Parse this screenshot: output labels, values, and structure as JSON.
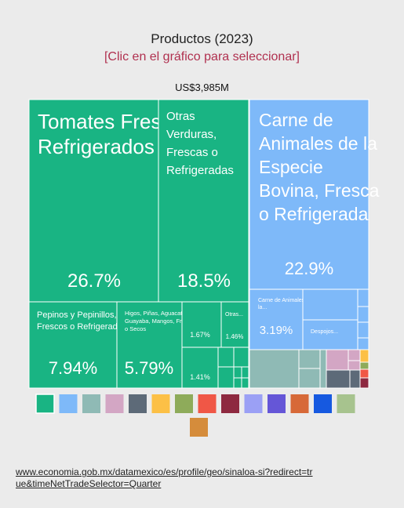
{
  "header": {
    "title": "Productos (2023)",
    "subtitle": "[Clic en el gráfico para seleccionar]",
    "total": "US$3,985M"
  },
  "source": {
    "link": "www.economia.gob.mx/datamexico/es/profile/geo/sinaloa-si?redirect=true&timeNetTradeSelector=Quarter"
  },
  "colors": {
    "green": "#19b483",
    "blue": "#7eb9f9",
    "sage": "#8fbab5",
    "pink": "#d3a6c4",
    "slate": "#5d6a78",
    "yellow": "#fcc046",
    "olive": "#8eab5a",
    "red": "#f05746",
    "maroon": "#8e2940",
    "lavender": "#9ba0f5",
    "indigo": "#6556d7",
    "orange": "#d76938",
    "royal": "#1659e0",
    "lightgreen": "#a7c38e",
    "ochre": "#d58c3b"
  },
  "chart_data": {
    "type": "treemap",
    "total_label": "US$3,985M",
    "items": [
      {
        "label": "Tomates Frescos o Refrigerados",
        "share": 26.7,
        "share_label": "26.7%",
        "group": "green"
      },
      {
        "label": "Otras Verduras, Frescas o Refrigeradas",
        "share": 18.5,
        "share_label": "18.5%",
        "group": "green"
      },
      {
        "label": "Carne de Animales de la Especie Bovina, Fresca o Refrigerada",
        "share": 22.9,
        "share_label": "22.9%",
        "group": "blue"
      },
      {
        "label": "Pepinos y Pepinillos, Frescos o Refrigerados",
        "share": 7.94,
        "share_label": "7.94%",
        "group": "green"
      },
      {
        "label": "Higos, Piñas, Aguacates, Guayaba, Mangos, Frescos o Secos",
        "share": 5.79,
        "share_label": "5.79%",
        "group": "green"
      },
      {
        "label": "",
        "share": 1.67,
        "share_label": "1.67%",
        "group": "green"
      },
      {
        "label": "Otras...",
        "share": 1.46,
        "share_label": "1.46%",
        "group": "green"
      },
      {
        "label": "",
        "share": 1.41,
        "share_label": "1.41%",
        "group": "green"
      },
      {
        "label": "Carne de Animales de la...",
        "share": 3.19,
        "share_label": "3.19%",
        "group": "blue"
      },
      {
        "label": "Despojos...",
        "share": null,
        "share_label": "",
        "group": "blue"
      }
    ],
    "legend": [
      "green",
      "blue",
      "sage",
      "pink",
      "slate",
      "yellow",
      "olive",
      "red",
      "maroon",
      "lavender",
      "indigo",
      "orange",
      "royal",
      "lightgreen",
      "ochre"
    ]
  }
}
